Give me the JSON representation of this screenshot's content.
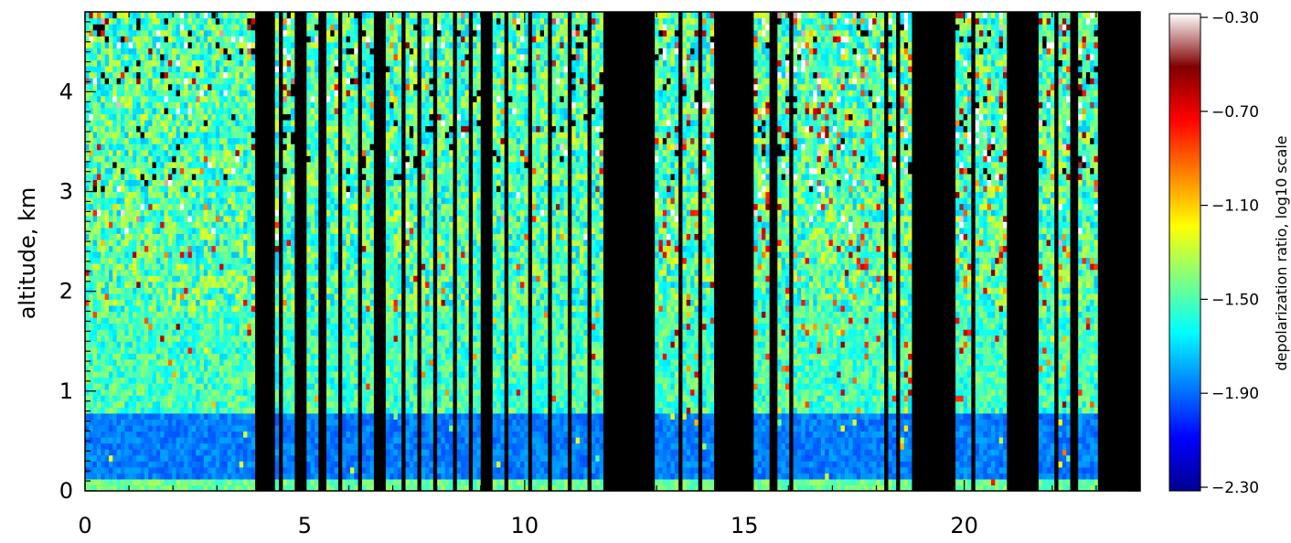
{
  "chart_data": {
    "type": "heatmap",
    "title": "",
    "xlabel": "",
    "ylabel": "altitude, km",
    "xlim": [
      0,
      24
    ],
    "ylim": [
      0,
      4.8
    ],
    "x_ticks": [
      0,
      5,
      10,
      15,
      20
    ],
    "y_ticks": [
      0,
      1,
      2,
      3,
      4
    ],
    "colorbar": {
      "label": "depolarization ratio, log10 scale",
      "range": [
        -2.3,
        -0.3
      ],
      "ticks": [
        "-0.30",
        "-0.70",
        "-1.10",
        "-1.50",
        "-1.90",
        "-2.30"
      ],
      "colormap": [
        "#00008f",
        "#0000ff",
        "#0080ff",
        "#00ffff",
        "#80ff80",
        "#ffff00",
        "#ff8000",
        "#ff0000",
        "#800000",
        "#ffffff"
      ]
    },
    "no_data_color": "#000000",
    "no_data_x_ranges": [
      [
        3.85,
        4.3
      ],
      [
        4.45,
        4.5
      ],
      [
        4.75,
        5.0
      ],
      [
        5.3,
        5.45
      ],
      [
        5.75,
        5.85
      ],
      [
        6.2,
        6.3
      ],
      [
        6.55,
        6.8
      ],
      [
        7.2,
        7.3
      ],
      [
        7.55,
        7.65
      ],
      [
        7.95,
        8.05
      ],
      [
        8.35,
        8.45
      ],
      [
        8.75,
        8.85
      ],
      [
        9.0,
        9.25
      ],
      [
        9.5,
        9.6
      ],
      [
        10.05,
        10.2
      ],
      [
        10.55,
        10.65
      ],
      [
        11.0,
        11.1
      ],
      [
        11.45,
        11.55
      ],
      [
        11.8,
        13.0
      ],
      [
        13.5,
        13.6
      ],
      [
        13.95,
        14.05
      ],
      [
        14.3,
        15.2
      ],
      [
        15.6,
        15.75
      ],
      [
        16.05,
        16.15
      ],
      [
        18.2,
        18.3
      ],
      [
        18.45,
        18.55
      ],
      [
        18.8,
        19.8
      ],
      [
        20.15,
        20.25
      ],
      [
        21.0,
        21.7
      ],
      [
        22.05,
        22.15
      ],
      [
        22.45,
        22.55
      ],
      [
        23.05,
        24.0
      ]
    ],
    "vertical_profile_note": "",
    "series": []
  }
}
